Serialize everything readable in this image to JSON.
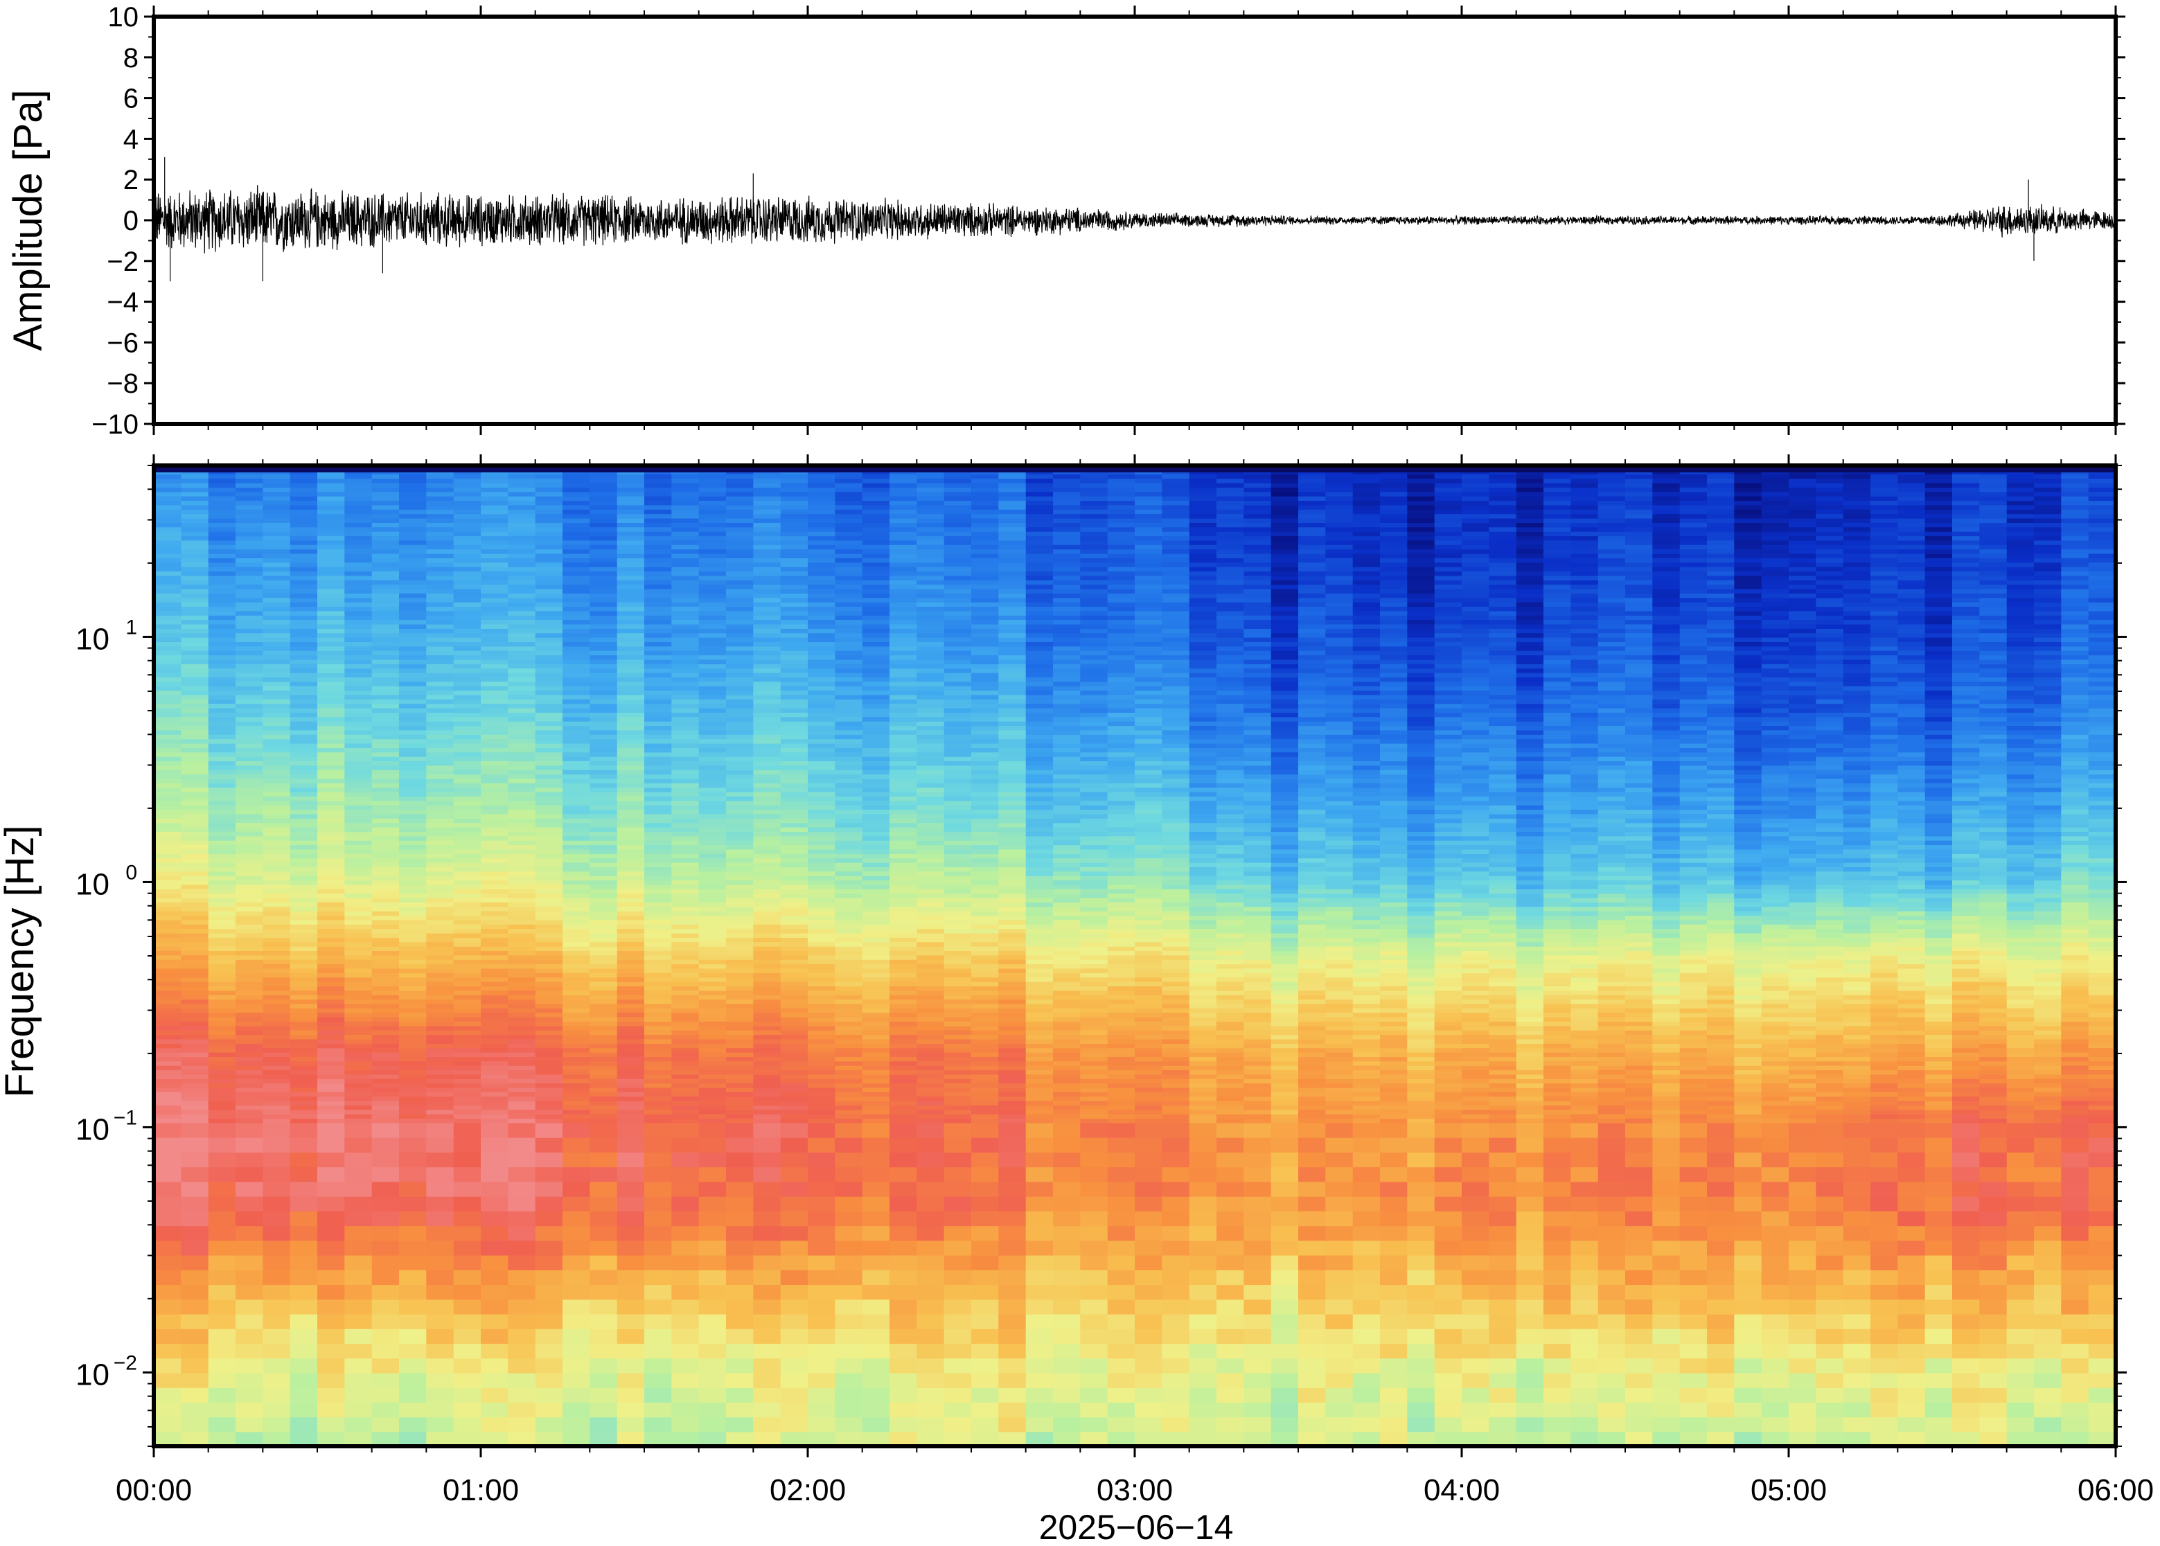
{
  "chart_data": [
    {
      "type": "line",
      "panel": "waveform",
      "title": "",
      "ylabel": "Amplitude [Pa]",
      "xlabel": "",
      "ylim": [
        -10,
        10
      ],
      "yticks": [
        10,
        8,
        6,
        4,
        2,
        0,
        -2,
        -4,
        -6,
        -8,
        -10
      ],
      "ytick_labels": [
        "10",
        "8",
        "6",
        "4",
        "2",
        "0",
        "−2",
        "−4",
        "−6",
        "−8",
        "−10"
      ],
      "xlim": [
        "00:00",
        "06:00"
      ],
      "grid": false,
      "series": [
        {
          "color": "#000000",
          "envelope": {
            "x": [
              "00:00",
              "00:10",
              "00:20",
              "00:30",
              "00:40",
              "00:50",
              "01:00",
              "01:10",
              "01:20",
              "01:30",
              "01:40",
              "01:50",
              "02:00",
              "02:10",
              "02:20",
              "02:30",
              "02:40",
              "02:50",
              "03:00",
              "03:10",
              "03:20",
              "03:30",
              "03:40",
              "03:50",
              "04:00",
              "04:10",
              "04:20",
              "04:30",
              "04:40",
              "04:50",
              "05:00",
              "05:10",
              "05:20",
              "05:30",
              "05:40",
              "05:50",
              "06:00"
            ],
            "amplitude": [
              1.4,
              1.5,
              1.5,
              1.4,
              1.3,
              1.3,
              1.2,
              1.2,
              1.2,
              1.1,
              1.1,
              1.2,
              1.1,
              1.0,
              0.9,
              0.8,
              0.7,
              0.6,
              0.4,
              0.3,
              0.3,
              0.2,
              0.2,
              0.2,
              0.2,
              0.2,
              0.2,
              0.2,
              0.2,
              0.2,
              0.2,
              0.2,
              0.2,
              0.3,
              0.8,
              0.6,
              0.4
            ]
          },
          "spikes": [
            {
              "x": "00:02",
              "y": 3.1
            },
            {
              "x": "00:03",
              "y": -3.0
            },
            {
              "x": "00:20",
              "y": -3.0
            },
            {
              "x": "00:42",
              "y": -2.6
            },
            {
              "x": "01:50",
              "y": 2.3
            },
            {
              "x": "05:44",
              "y": 2.0
            },
            {
              "x": "05:45",
              "y": -2.0
            }
          ]
        }
      ]
    },
    {
      "type": "heatmap",
      "panel": "spectrogram",
      "title": "",
      "ylabel": "Frequency [Hz]",
      "xlabel": "2025−06−14",
      "yscale": "log",
      "ylim": [
        0.005,
        50
      ],
      "yticks": [
        0.01,
        0.1,
        1,
        10
      ],
      "ytick_labels": [
        {
          "base": "10",
          "exp": "−2"
        },
        {
          "base": "10",
          "exp": "−1"
        },
        {
          "base": "10",
          "exp": "0"
        },
        {
          "base": "10",
          "exp": "1"
        }
      ],
      "xlim": [
        "00:00",
        "06:00"
      ],
      "xtick_labels": [
        "00:00",
        "01:00",
        "02:00",
        "03:00",
        "04:00",
        "05:00",
        "06:00"
      ],
      "colormap": [
        "#08086e",
        "#0a2fc8",
        "#1f6fe8",
        "#3fa9f0",
        "#6fd9e0",
        "#b8f0a0",
        "#f0f088",
        "#f8c050",
        "#f89040",
        "#f06050",
        "#f28a8a"
      ],
      "time_x": [
        "00:00",
        "00:30",
        "01:00",
        "01:30",
        "02:00",
        "02:30",
        "03:00",
        "03:30",
        "04:00",
        "04:30",
        "05:00",
        "05:30",
        "06:00"
      ],
      "freq_y": [
        0.005,
        0.01,
        0.02,
        0.05,
        0.1,
        0.2,
        0.5,
        1,
        2,
        5,
        10,
        20,
        50
      ],
      "level_0_to_10": [
        [
          5.3,
          5.2,
          5.2,
          5.3,
          5.5,
          5.8,
          5.3,
          5.5,
          5.3,
          5.1,
          5.3,
          5.4,
          5.3
        ],
        [
          6.0,
          5.8,
          5.9,
          5.8,
          6.0,
          6.0,
          5.8,
          5.6,
          5.7,
          5.8,
          5.9,
          6.0,
          6.2
        ],
        [
          7.2,
          7.0,
          7.3,
          7.0,
          7.2,
          7.1,
          6.8,
          6.5,
          6.8,
          7.0,
          7.0,
          7.1,
          7.5
        ],
        [
          9.3,
          9.4,
          9.2,
          9.0,
          8.8,
          8.6,
          8.0,
          7.6,
          8.0,
          8.2,
          8.2,
          8.6,
          9.0
        ],
        [
          9.6,
          9.6,
          9.4,
          9.2,
          9.0,
          8.8,
          8.2,
          7.6,
          7.8,
          8.0,
          8.0,
          8.6,
          9.2
        ],
        [
          9.0,
          9.0,
          8.9,
          8.8,
          8.6,
          8.4,
          7.8,
          7.2,
          7.2,
          7.3,
          7.2,
          7.5,
          8.0
        ],
        [
          7.2,
          7.1,
          7.0,
          6.8,
          6.8,
          6.6,
          6.2,
          5.6,
          5.6,
          5.6,
          5.8,
          5.8,
          6.2
        ],
        [
          5.8,
          5.6,
          5.6,
          5.4,
          5.2,
          5.0,
          4.5,
          3.6,
          3.5,
          3.6,
          3.4,
          3.4,
          4.6
        ],
        [
          4.8,
          4.7,
          4.6,
          4.4,
          4.3,
          4.0,
          3.5,
          2.8,
          2.7,
          2.8,
          2.6,
          2.6,
          3.6
        ],
        [
          4.0,
          3.8,
          3.7,
          3.6,
          3.5,
          3.2,
          2.6,
          1.8,
          1.8,
          2.0,
          1.6,
          1.6,
          2.8
        ],
        [
          3.3,
          3.2,
          3.1,
          3.0,
          2.9,
          2.6,
          2.0,
          1.4,
          1.2,
          1.5,
          1.2,
          1.2,
          2.2
        ],
        [
          2.8,
          2.8,
          2.7,
          2.6,
          2.5,
          2.2,
          1.7,
          1.0,
          0.9,
          1.2,
          1.0,
          1.0,
          1.9
        ],
        [
          2.2,
          2.2,
          2.2,
          2.1,
          2.0,
          1.8,
          1.4,
          0.8,
          0.7,
          0.9,
          0.7,
          0.8,
          1.6
        ]
      ]
    }
  ]
}
